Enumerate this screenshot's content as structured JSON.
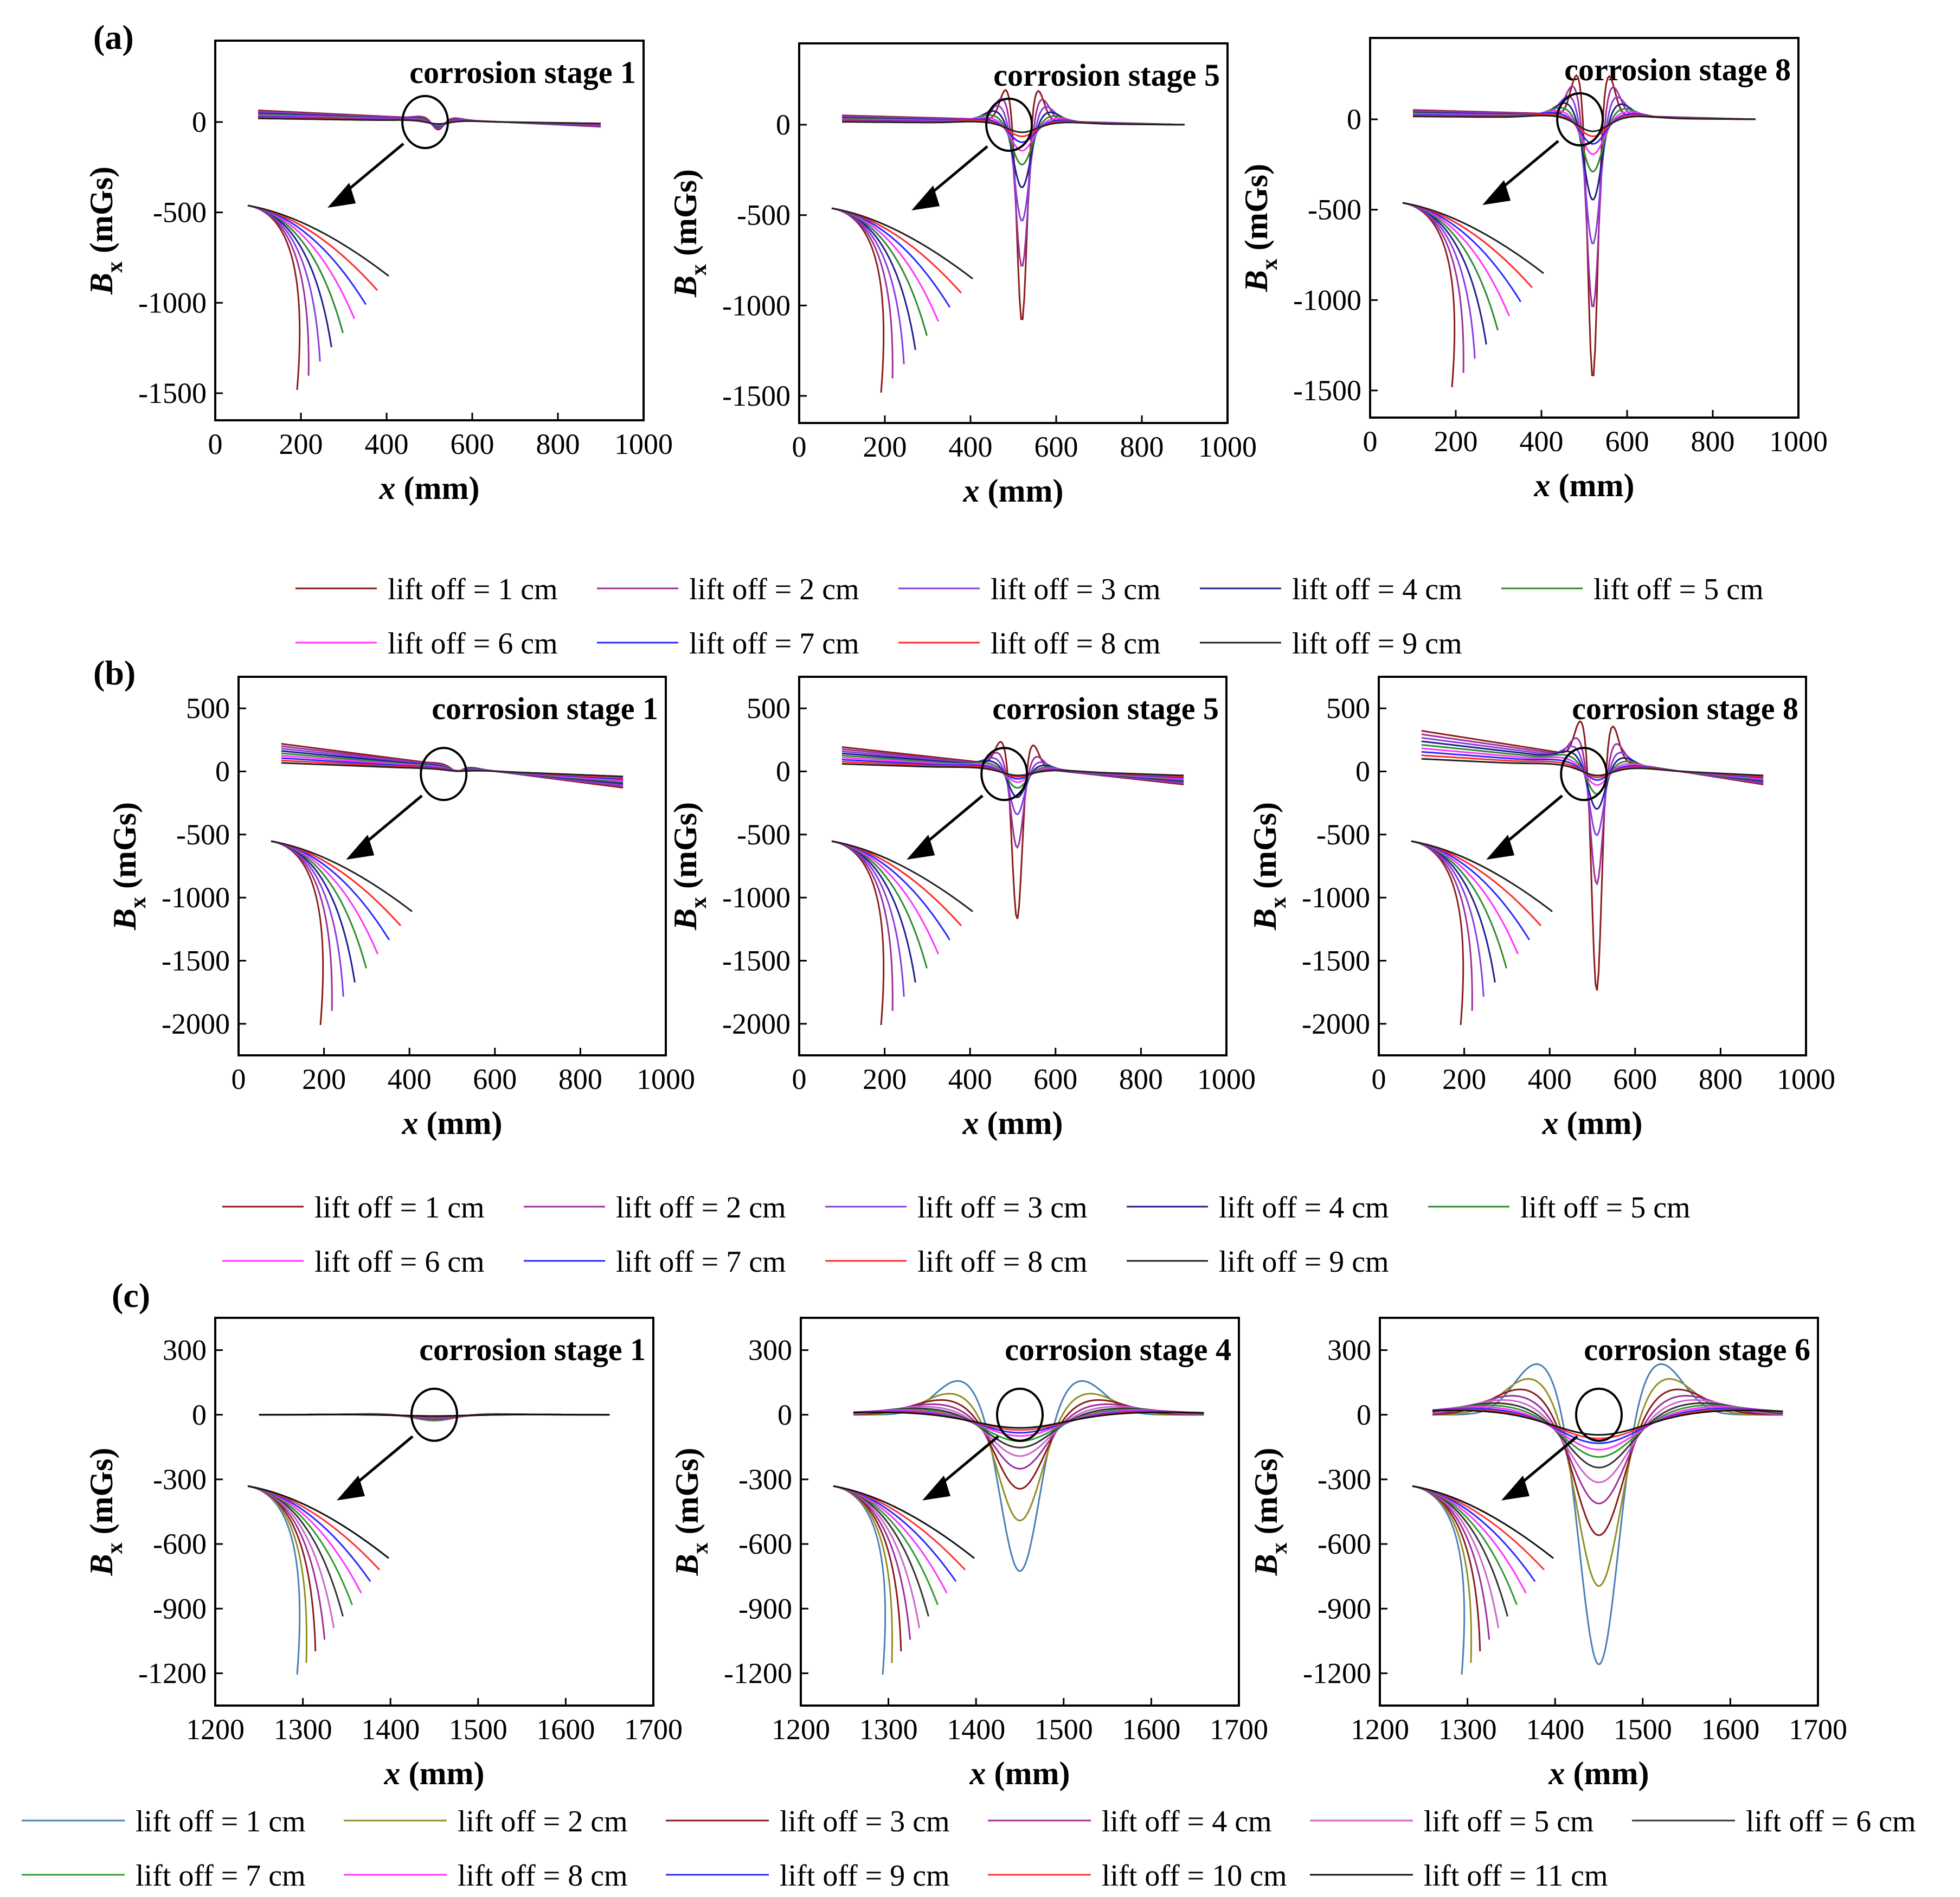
{
  "panel_letters": [
    "(a)",
    "(b)",
    "(c)"
  ],
  "colors": {
    "lift_9_ab": [
      "#8b1a1a",
      "#9b2f9b",
      "#8a3be0",
      "#1f1f8f",
      "#2e8b2e",
      "#ff33ff",
      "#2a2aff",
      "#ff2a2a",
      "#222222"
    ],
    "lift_11_c": [
      "#4a7fb5",
      "#8f8f1f",
      "#8b1a1a",
      "#9b2f9b",
      "#cc66cc",
      "#333333",
      "#2e9b2e",
      "#ff33ff",
      "#2a2aff",
      "#ff3333",
      "#111111"
    ]
  },
  "legends": [
    {
      "group": "a",
      "cols": 5,
      "labels": [
        "lift off = 1 cm",
        "lift off = 2 cm",
        "lift off = 3 cm",
        "lift off = 4 cm",
        "lift off = 5 cm",
        "lift off = 6 cm",
        "lift off = 7 cm",
        "lift off = 8 cm",
        "lift off = 9 cm"
      ]
    },
    {
      "group": "b",
      "cols": 5,
      "labels": [
        "lift off = 1 cm",
        "lift off = 2 cm",
        "lift off = 3 cm",
        "lift off = 4 cm",
        "lift off = 5 cm",
        "lift off = 6 cm",
        "lift off = 7 cm",
        "lift off = 8 cm",
        "lift off = 9 cm"
      ]
    },
    {
      "group": "c",
      "cols": 6,
      "labels": [
        "lift off = 1 cm",
        "lift off = 2 cm",
        "lift off = 3 cm",
        "lift off = 4 cm",
        "lift off = 5 cm",
        "lift off = 6 cm",
        "lift off = 7 cm",
        "lift off = 8 cm",
        "lift off = 9 cm",
        "lift off = 10 cm",
        "lift off = 11 cm"
      ]
    }
  ],
  "chart_data": [
    {
      "id": "a1",
      "group": "a",
      "type": "line",
      "title": "corrosion stage 1",
      "xlabel_italic": "x",
      "xlabel_rest": " (mm)",
      "ylabel_sym": "B",
      "ylabel_sub": "x",
      "ylabel_unit": " (mGs)",
      "xlim": [
        0,
        1000
      ],
      "ylim": [
        -1650,
        450
      ],
      "xticks": [
        0,
        200,
        400,
        600,
        800,
        1000
      ],
      "yticks": [
        -1500,
        -1000,
        -500,
        0
      ],
      "x_range": [
        100,
        900
      ],
      "defect_center": 520,
      "amplitudes": [
        60,
        52,
        45,
        38,
        32,
        27,
        23,
        19,
        16
      ],
      "widths": [
        18,
        20,
        22,
        24,
        26,
        28,
        30,
        32,
        34
      ],
      "baseline": {
        "start": 50,
        "end": -20
      }
    },
    {
      "id": "a2",
      "group": "a",
      "type": "line",
      "title": "corrosion stage 5",
      "xlabel_italic": "x",
      "xlabel_rest": " (mm)",
      "ylabel_sym": "B",
      "ylabel_sub": "x",
      "ylabel_unit": " (mGs)",
      "xlim": [
        0,
        1000
      ],
      "ylim": [
        -1650,
        450
      ],
      "xticks": [
        0,
        200,
        400,
        600,
        800,
        1000
      ],
      "yticks": [
        -1500,
        -1000,
        -500,
        0
      ],
      "x_range": [
        100,
        900
      ],
      "defect_center": 520,
      "amplitudes": [
        1130,
        820,
        560,
        370,
        240,
        160,
        110,
        75,
        50
      ],
      "widths": [
        16,
        20,
        24,
        28,
        32,
        36,
        40,
        44,
        48
      ],
      "baseline": {
        "start": 40,
        "end": 0
      }
    },
    {
      "id": "a3",
      "group": "a",
      "type": "line",
      "title": "corrosion stage 8",
      "xlabel_italic": "x",
      "xlabel_rest": " (mm)",
      "ylabel_sym": "B",
      "ylabel_sub": "x",
      "ylabel_unit": " (mGs)",
      "xlim": [
        0,
        1000
      ],
      "ylim": [
        -1650,
        450
      ],
      "xticks": [
        0,
        200,
        400,
        600,
        800,
        1000
      ],
      "yticks": [
        -1500,
        -1000,
        -500,
        0
      ],
      "x_range": [
        100,
        900
      ],
      "defect_center": 520,
      "amplitudes": [
        1480,
        1080,
        720,
        470,
        310,
        210,
        150,
        105,
        75
      ],
      "widths": [
        16,
        20,
        24,
        28,
        32,
        36,
        40,
        44,
        48
      ],
      "baseline": {
        "start": 40,
        "end": 0
      }
    },
    {
      "id": "b1",
      "group": "b",
      "type": "line",
      "title": "corrosion stage 1",
      "xlabel_italic": "x",
      "xlabel_rest": " (mm)",
      "ylabel_sym": "B",
      "ylabel_sub": "x",
      "ylabel_unit": " (mGs)",
      "xlim": [
        0,
        1000
      ],
      "ylim": [
        -2250,
        750
      ],
      "xticks": [
        0,
        200,
        400,
        600,
        800,
        1000
      ],
      "yticks": [
        -2000,
        -1500,
        -1000,
        -500,
        0,
        500
      ],
      "x_range": [
        100,
        900
      ],
      "defect_center": 510,
      "amplitudes": [
        40,
        34,
        29,
        24,
        20,
        17,
        14,
        12,
        10
      ],
      "widths": [
        18,
        20,
        22,
        24,
        26,
        28,
        30,
        32,
        34
      ],
      "baseline": {
        "start": 170,
        "end": -100
      }
    },
    {
      "id": "b2",
      "group": "b",
      "type": "line",
      "title": "corrosion stage 5",
      "xlabel_italic": "x",
      "xlabel_rest": " (mm)",
      "ylabel_sym": "B",
      "ylabel_sub": "x",
      "ylabel_unit": " (mGs)",
      "xlim": [
        0,
        1000
      ],
      "ylim": [
        -2250,
        750
      ],
      "xticks": [
        0,
        200,
        400,
        600,
        800,
        1000
      ],
      "yticks": [
        -2000,
        -1500,
        -1000,
        -500,
        0,
        500
      ],
      "x_range": [
        100,
        900
      ],
      "defect_center": 510,
      "amplitudes": [
        1230,
        650,
        380,
        240,
        160,
        110,
        80,
        60,
        45
      ],
      "widths": [
        16,
        20,
        24,
        28,
        32,
        36,
        40,
        44,
        48
      ],
      "baseline": {
        "start": 150,
        "end": -80
      }
    },
    {
      "id": "b3",
      "group": "b",
      "type": "line",
      "title": "corrosion stage 8",
      "xlabel_italic": "x",
      "xlabel_rest": " (mm)",
      "ylabel_sym": "B",
      "ylabel_sub": "x",
      "ylabel_unit": " (mGs)",
      "xlim": [
        0,
        1000
      ],
      "ylim": [
        -2250,
        750
      ],
      "xticks": [
        0,
        200,
        400,
        600,
        800,
        1000
      ],
      "yticks": [
        -2000,
        -1500,
        -1000,
        -500,
        0,
        500
      ],
      "x_range": [
        100,
        900
      ],
      "defect_center": 510,
      "amplitudes": [
        1870,
        1000,
        600,
        380,
        250,
        170,
        120,
        90,
        65
      ],
      "widths": [
        16,
        20,
        24,
        28,
        32,
        36,
        40,
        44,
        48
      ],
      "baseline": {
        "start": 250,
        "end": -80
      }
    },
    {
      "id": "c1",
      "group": "c",
      "type": "line",
      "title": "corrosion stage 1",
      "xlabel_italic": "x",
      "xlabel_rest": " (mm)",
      "ylabel_sym": "B",
      "ylabel_sub": "x",
      "ylabel_unit": " (mGs)",
      "xlim": [
        1200,
        1700
      ],
      "ylim": [
        -1350,
        450
      ],
      "xticks": [
        1200,
        1300,
        1400,
        1500,
        1600,
        1700
      ],
      "yticks": [
        -1200,
        -900,
        -600,
        -300,
        0,
        300
      ],
      "x_range": [
        1250,
        1650
      ],
      "defect_center": 1450,
      "amplitudes": [
        28,
        24,
        21,
        18,
        15,
        13,
        11,
        9,
        8,
        7,
        6
      ],
      "widths": [
        30,
        32,
        34,
        36,
        38,
        40,
        42,
        44,
        46,
        48,
        50
      ],
      "baseline": {
        "start": 0,
        "end": 0
      }
    },
    {
      "id": "c2",
      "group": "c",
      "type": "line",
      "title": "corrosion stage 4",
      "xlabel_italic": "x",
      "xlabel_rest": " (mm)",
      "ylabel_sym": "B",
      "ylabel_sub": "x",
      "ylabel_unit": " (mGs)",
      "xlim": [
        1200,
        1700
      ],
      "ylim": [
        -1350,
        450
      ],
      "xticks": [
        1200,
        1300,
        1400,
        1500,
        1600,
        1700
      ],
      "yticks": [
        -1200,
        -900,
        -600,
        -300,
        0,
        300
      ],
      "x_range": [
        1260,
        1660
      ],
      "defect_center": 1450,
      "amplitudes": [
        740,
        500,
        350,
        255,
        195,
        155,
        125,
        100,
        85,
        72,
        62
      ],
      "widths": [
        30,
        34,
        38,
        42,
        46,
        50,
        54,
        58,
        62,
        66,
        70
      ],
      "peak_positive": [
        160,
        100,
        70,
        50,
        38,
        30,
        24,
        20,
        16,
        14,
        12
      ],
      "baseline": {
        "start": 0,
        "end": 0
      }
    },
    {
      "id": "c3",
      "group": "c",
      "type": "line",
      "title": "corrosion stage 6",
      "xlabel_italic": "x",
      "xlabel_rest": " (mm)",
      "ylabel_sym": "B",
      "ylabel_sub": "x",
      "ylabel_unit": " (mGs)",
      "xlim": [
        1200,
        1700
      ],
      "ylim": [
        -1350,
        450
      ],
      "xticks": [
        1200,
        1300,
        1400,
        1500,
        1600,
        1700
      ],
      "yticks": [
        -1200,
        -900,
        -600,
        -300,
        0,
        300
      ],
      "x_range": [
        1260,
        1660
      ],
      "defect_center": 1450,
      "amplitudes": [
        1180,
        810,
        570,
        420,
        320,
        250,
        200,
        165,
        135,
        112,
        95
      ],
      "widths": [
        30,
        34,
        38,
        42,
        46,
        50,
        54,
        58,
        62,
        66,
        70
      ],
      "peak_positive": [
        240,
        170,
        120,
        90,
        70,
        55,
        45,
        37,
        30,
        25,
        21
      ],
      "baseline": {
        "start": 0,
        "end": 0
      }
    }
  ]
}
